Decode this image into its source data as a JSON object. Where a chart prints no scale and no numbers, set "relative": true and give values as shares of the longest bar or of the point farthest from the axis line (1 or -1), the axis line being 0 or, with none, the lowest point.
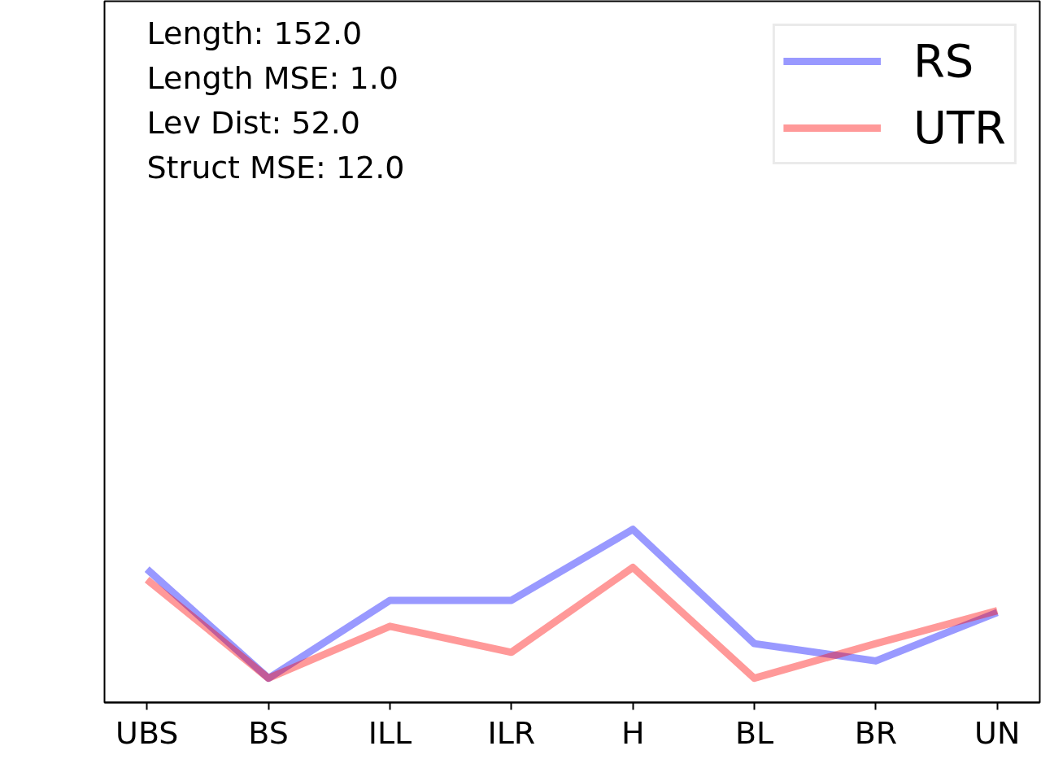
{
  "chart_data": {
    "type": "line",
    "relative": true,
    "categories": [
      "UBS",
      "BS",
      "ILL",
      "ILR",
      "H",
      "BL",
      "BR",
      "UN"
    ],
    "series": [
      {
        "name": "RS",
        "color": "#9999ff",
        "values": [
          0.77,
          0.14,
          0.59,
          0.59,
          1.0,
          0.34,
          0.24,
          0.52
        ]
      },
      {
        "name": "UTR",
        "color": "#ff9999",
        "values": [
          0.71,
          0.14,
          0.44,
          0.29,
          0.78,
          0.14,
          0.34,
          0.53
        ]
      }
    ],
    "annotations": [
      "Length: 152.0",
      "Length MSE: 1.0",
      "Lev Dist: 52.0",
      "Struct MSE: 12.0"
    ],
    "legend": "top right",
    "line_style": "solid",
    "marker": "none"
  }
}
